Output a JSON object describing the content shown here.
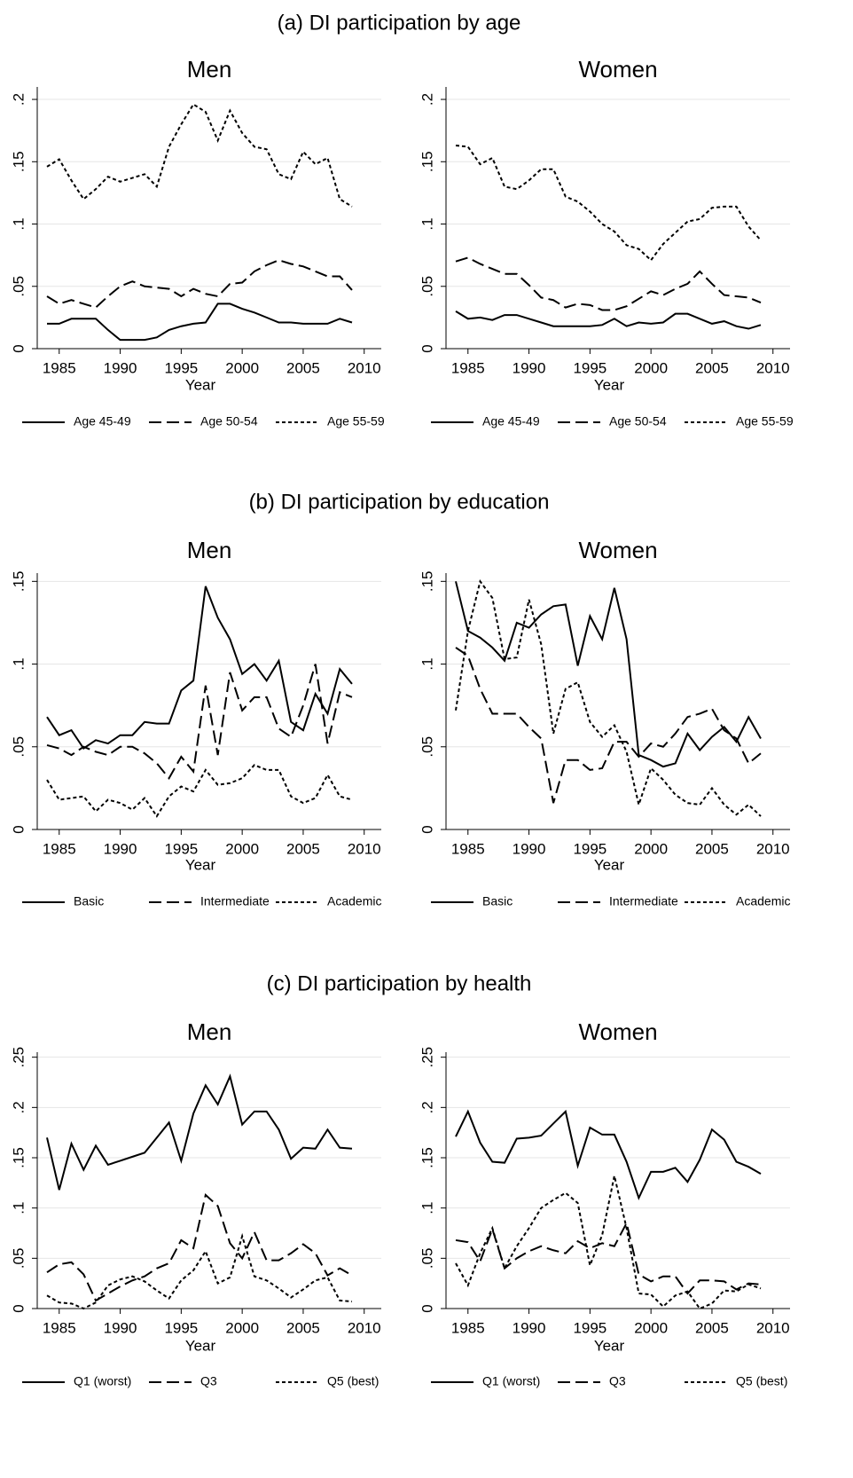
{
  "section_titles": [
    "(a) DI participation by age",
    "(b) DI participation by education",
    "(c) DI participation by health"
  ],
  "chart_data": [
    {
      "type": "line",
      "title": "Men",
      "xlabel": "Year",
      "grid": true,
      "x": [
        1984,
        1985,
        1986,
        1987,
        1988,
        1989,
        1990,
        1991,
        1992,
        1993,
        1994,
        1995,
        1996,
        1997,
        1998,
        1999,
        2000,
        2001,
        2002,
        2003,
        2004,
        2005,
        2006,
        2007,
        2008,
        2009
      ],
      "xlim": [
        1983.2,
        2011.4
      ],
      "xticks": [
        1985,
        1990,
        1995,
        2000,
        2005,
        2010
      ],
      "ylim": [
        0,
        0.21
      ],
      "yticks": [
        0,
        {
          "value": 0.05,
          "label": ".05"
        },
        {
          "value": 0.1,
          "label": ".1"
        },
        {
          "value": 0.15,
          "label": ".15"
        },
        {
          "value": 0.2,
          "label": ".2"
        }
      ],
      "series": [
        {
          "name": "Age 45-49",
          "color": "#000000",
          "dash": "solid",
          "values": [
            0.02,
            0.02,
            0.024,
            0.024,
            0.024,
            0.015,
            0.007,
            0.007,
            0.007,
            0.009,
            0.015,
            0.018,
            0.02,
            0.021,
            0.036,
            0.036,
            0.032,
            0.029,
            0.025,
            0.021,
            0.021,
            0.02,
            0.02,
            0.02,
            0.024,
            0.021
          ]
        },
        {
          "name": "Age 50-54",
          "color": "#000000",
          "dash": "dashed",
          "values": [
            0.042,
            0.036,
            0.039,
            0.036,
            0.033,
            0.042,
            0.05,
            0.054,
            0.05,
            0.049,
            0.048,
            0.042,
            0.048,
            0.044,
            0.042,
            0.052,
            0.053,
            0.062,
            0.067,
            0.071,
            0.068,
            0.066,
            0.062,
            0.058,
            0.058,
            0.047
          ]
        },
        {
          "name": "Age 55-59",
          "color": "#000000",
          "dash": "dotted",
          "values": [
            0.146,
            0.152,
            0.135,
            0.12,
            0.128,
            0.138,
            0.134,
            0.137,
            0.14,
            0.13,
            0.162,
            0.18,
            0.196,
            0.19,
            0.167,
            0.191,
            0.173,
            0.162,
            0.16,
            0.14,
            0.136,
            0.158,
            0.148,
            0.153,
            0.12,
            0.114
          ]
        }
      ]
    },
    {
      "type": "line",
      "title": "Women",
      "xlabel": "Year",
      "grid": true,
      "x": [
        1984,
        1985,
        1986,
        1987,
        1988,
        1989,
        1990,
        1991,
        1992,
        1993,
        1994,
        1995,
        1996,
        1997,
        1998,
        1999,
        2000,
        2001,
        2002,
        2003,
        2004,
        2005,
        2006,
        2007,
        2008,
        2009
      ],
      "xlim": [
        1983.2,
        2011.4
      ],
      "xticks": [
        1985,
        1990,
        1995,
        2000,
        2005,
        2010
      ],
      "ylim": [
        0,
        0.21
      ],
      "yticks": [
        0,
        {
          "value": 0.05,
          "label": ".05"
        },
        {
          "value": 0.1,
          "label": ".1"
        },
        {
          "value": 0.15,
          "label": ".15"
        },
        {
          "value": 0.2,
          "label": ".2"
        }
      ],
      "series": [
        {
          "name": "Age 45-49",
          "color": "#000000",
          "dash": "solid",
          "values": [
            0.03,
            0.024,
            0.025,
            0.023,
            0.027,
            0.027,
            0.024,
            0.021,
            0.018,
            0.018,
            0.018,
            0.018,
            0.019,
            0.024,
            0.018,
            0.021,
            0.02,
            0.021,
            0.028,
            0.028,
            0.024,
            0.02,
            0.022,
            0.018,
            0.016,
            0.019
          ]
        },
        {
          "name": "Age 50-54",
          "color": "#000000",
          "dash": "dashed",
          "values": [
            0.07,
            0.073,
            0.068,
            0.064,
            0.06,
            0.06,
            0.051,
            0.041,
            0.039,
            0.033,
            0.036,
            0.035,
            0.031,
            0.031,
            0.034,
            0.04,
            0.046,
            0.043,
            0.048,
            0.052,
            0.062,
            0.052,
            0.043,
            0.042,
            0.041,
            0.037
          ]
        },
        {
          "name": "Age 55-59",
          "color": "#000000",
          "dash": "dotted",
          "values": [
            0.163,
            0.162,
            0.148,
            0.153,
            0.13,
            0.128,
            0.135,
            0.144,
            0.144,
            0.122,
            0.118,
            0.11,
            0.1,
            0.094,
            0.083,
            0.08,
            0.071,
            0.084,
            0.093,
            0.102,
            0.104,
            0.113,
            0.114,
            0.114,
            0.098,
            0.087
          ]
        }
      ]
    },
    {
      "type": "line",
      "title": "Men",
      "xlabel": "Year",
      "grid": true,
      "x": [
        1984,
        1985,
        1986,
        1987,
        1988,
        1989,
        1990,
        1991,
        1992,
        1993,
        1994,
        1995,
        1996,
        1997,
        1998,
        1999,
        2000,
        2001,
        2002,
        2003,
        2004,
        2005,
        2006,
        2007,
        2008,
        2009
      ],
      "xlim": [
        1983.2,
        2011.4
      ],
      "xticks": [
        1985,
        1990,
        1995,
        2000,
        2005,
        2010
      ],
      "ylim": [
        0,
        0.155
      ],
      "yticks": [
        0,
        {
          "value": 0.05,
          "label": ".05"
        },
        {
          "value": 0.1,
          "label": ".1"
        },
        {
          "value": 0.15,
          "label": ".15"
        }
      ],
      "series": [
        {
          "name": "Basic",
          "color": "#000000",
          "dash": "solid",
          "values": [
            0.068,
            0.057,
            0.06,
            0.049,
            0.054,
            0.052,
            0.057,
            0.057,
            0.065,
            0.064,
            0.064,
            0.084,
            0.09,
            0.147,
            0.128,
            0.115,
            0.094,
            0.1,
            0.09,
            0.102,
            0.065,
            0.06,
            0.082,
            0.07,
            0.097,
            0.088
          ]
        },
        {
          "name": "Intermediate",
          "color": "#000000",
          "dash": "dashed",
          "values": [
            0.051,
            0.049,
            0.045,
            0.05,
            0.047,
            0.045,
            0.05,
            0.05,
            0.046,
            0.04,
            0.031,
            0.044,
            0.035,
            0.087,
            0.045,
            0.095,
            0.072,
            0.08,
            0.08,
            0.061,
            0.056,
            0.075,
            0.1,
            0.052,
            0.083,
            0.08
          ]
        },
        {
          "name": "Academic",
          "color": "#000000",
          "dash": "dotted",
          "values": [
            0.03,
            0.018,
            0.019,
            0.02,
            0.011,
            0.018,
            0.016,
            0.012,
            0.019,
            0.008,
            0.02,
            0.026,
            0.023,
            0.036,
            0.027,
            0.028,
            0.031,
            0.039,
            0.036,
            0.036,
            0.02,
            0.016,
            0.019,
            0.033,
            0.02,
            0.018
          ]
        }
      ]
    },
    {
      "type": "line",
      "title": "Women",
      "xlabel": "Year",
      "grid": true,
      "x": [
        1984,
        1985,
        1986,
        1987,
        1988,
        1989,
        1990,
        1991,
        1992,
        1993,
        1994,
        1995,
        1996,
        1997,
        1998,
        1999,
        2000,
        2001,
        2002,
        2003,
        2004,
        2005,
        2006,
        2007,
        2008,
        2009
      ],
      "xlim": [
        1983.2,
        2011.4
      ],
      "xticks": [
        1985,
        1990,
        1995,
        2000,
        2005,
        2010
      ],
      "ylim": [
        0,
        0.155
      ],
      "yticks": [
        0,
        {
          "value": 0.05,
          "label": ".05"
        },
        {
          "value": 0.1,
          "label": ".1"
        },
        {
          "value": 0.15,
          "label": ".15"
        }
      ],
      "series": [
        {
          "name": "Basic",
          "color": "#000000",
          "dash": "solid",
          "values": [
            0.15,
            0.12,
            0.116,
            0.11,
            0.102,
            0.125,
            0.122,
            0.13,
            0.135,
            0.136,
            0.099,
            0.129,
            0.115,
            0.146,
            0.115,
            0.045,
            0.042,
            0.038,
            0.04,
            0.058,
            0.048,
            0.056,
            0.062,
            0.053,
            0.068,
            0.055
          ]
        },
        {
          "name": "Intermediate",
          "color": "#000000",
          "dash": "dashed",
          "values": [
            0.11,
            0.105,
            0.085,
            0.07,
            0.07,
            0.07,
            0.062,
            0.055,
            0.016,
            0.042,
            0.042,
            0.036,
            0.037,
            0.053,
            0.053,
            0.044,
            0.052,
            0.05,
            0.058,
            0.068,
            0.07,
            0.073,
            0.06,
            0.055,
            0.04,
            0.046
          ]
        },
        {
          "name": "Academic",
          "color": "#000000",
          "dash": "dotted",
          "values": [
            0.072,
            0.12,
            0.15,
            0.14,
            0.103,
            0.104,
            0.139,
            0.112,
            0.058,
            0.085,
            0.089,
            0.065,
            0.056,
            0.063,
            0.047,
            0.015,
            0.037,
            0.03,
            0.021,
            0.016,
            0.015,
            0.025,
            0.015,
            0.009,
            0.015,
            0.008
          ]
        }
      ]
    },
    {
      "type": "line",
      "title": "Men",
      "xlabel": "Year",
      "grid": true,
      "x": [
        1984,
        1985,
        1986,
        1987,
        1988,
        1989,
        1990,
        1991,
        1992,
        1993,
        1994,
        1995,
        1996,
        1997,
        1998,
        1999,
        2000,
        2001,
        2002,
        2003,
        2004,
        2005,
        2006,
        2007,
        2008,
        2009
      ],
      "xlim": [
        1983.2,
        2011.4
      ],
      "xticks": [
        1985,
        1990,
        1995,
        2000,
        2005,
        2010
      ],
      "ylim": [
        0,
        0.255
      ],
      "yticks": [
        0,
        {
          "value": 0.05,
          "label": ".05"
        },
        {
          "value": 0.1,
          "label": ".1"
        },
        {
          "value": 0.15,
          "label": ".15"
        },
        {
          "value": 0.2,
          "label": ".2"
        },
        {
          "value": 0.25,
          "label": ".25"
        }
      ],
      "series": [
        {
          "name": "Q1 (worst)",
          "color": "#000000",
          "dash": "solid",
          "values": [
            0.17,
            0.118,
            0.164,
            0.138,
            0.162,
            0.143,
            0.147,
            0.151,
            0.155,
            0.17,
            0.185,
            0.147,
            0.194,
            0.222,
            0.203,
            0.231,
            0.183,
            0.196,
            0.196,
            0.178,
            0.149,
            0.16,
            0.159,
            0.178,
            0.16,
            0.159
          ]
        },
        {
          "name": "Q3",
          "color": "#000000",
          "dash": "dashed",
          "values": [
            0.036,
            0.044,
            0.046,
            0.034,
            0.008,
            0.015,
            0.022,
            0.028,
            0.032,
            0.04,
            0.045,
            0.068,
            0.06,
            0.113,
            0.102,
            0.065,
            0.05,
            0.076,
            0.048,
            0.048,
            0.055,
            0.064,
            0.055,
            0.033,
            0.04,
            0.033
          ]
        },
        {
          "name": "Q5 (best)",
          "color": "#000000",
          "dash": "dotted",
          "values": [
            0.013,
            0.006,
            0.005,
            0.0,
            0.006,
            0.023,
            0.029,
            0.032,
            0.027,
            0.018,
            0.01,
            0.028,
            0.038,
            0.057,
            0.025,
            0.031,
            0.072,
            0.032,
            0.028,
            0.02,
            0.011,
            0.019,
            0.028,
            0.031,
            0.008,
            0.007
          ]
        }
      ]
    },
    {
      "type": "line",
      "title": "Women",
      "xlabel": "Year",
      "grid": true,
      "x": [
        1984,
        1985,
        1986,
        1987,
        1988,
        1989,
        1990,
        1991,
        1992,
        1993,
        1994,
        1995,
        1996,
        1997,
        1998,
        1999,
        2000,
        2001,
        2002,
        2003,
        2004,
        2005,
        2006,
        2007,
        2008,
        2009
      ],
      "xlim": [
        1983.2,
        2011.4
      ],
      "xticks": [
        1985,
        1990,
        1995,
        2000,
        2005,
        2010
      ],
      "ylim": [
        0,
        0.255
      ],
      "yticks": [
        0,
        {
          "value": 0.05,
          "label": ".05"
        },
        {
          "value": 0.1,
          "label": ".1"
        },
        {
          "value": 0.15,
          "label": ".15"
        },
        {
          "value": 0.2,
          "label": ".2"
        },
        {
          "value": 0.25,
          "label": ".25"
        }
      ],
      "series": [
        {
          "name": "Q1 (worst)",
          "color": "#000000",
          "dash": "solid",
          "values": [
            0.171,
            0.196,
            0.165,
            0.146,
            0.145,
            0.169,
            0.17,
            0.172,
            0.184,
            0.196,
            0.142,
            0.18,
            0.173,
            0.173,
            0.146,
            0.11,
            0.136,
            0.136,
            0.14,
            0.126,
            0.148,
            0.178,
            0.168,
            0.146,
            0.141,
            0.134
          ]
        },
        {
          "name": "Q3",
          "color": "#000000",
          "dash": "dashed",
          "values": [
            0.068,
            0.066,
            0.047,
            0.079,
            0.04,
            0.05,
            0.057,
            0.062,
            0.058,
            0.055,
            0.067,
            0.06,
            0.065,
            0.062,
            0.085,
            0.034,
            0.027,
            0.032,
            0.032,
            0.015,
            0.028,
            0.028,
            0.027,
            0.019,
            0.025,
            0.024
          ]
        },
        {
          "name": "Q5 (best)",
          "color": "#000000",
          "dash": "dotted",
          "values": [
            0.045,
            0.023,
            0.055,
            0.08,
            0.04,
            0.062,
            0.08,
            0.1,
            0.108,
            0.115,
            0.105,
            0.043,
            0.073,
            0.132,
            0.08,
            0.015,
            0.014,
            0.002,
            0.013,
            0.017,
            0.0,
            0.005,
            0.018,
            0.017,
            0.024,
            0.02
          ]
        }
      ]
    }
  ]
}
